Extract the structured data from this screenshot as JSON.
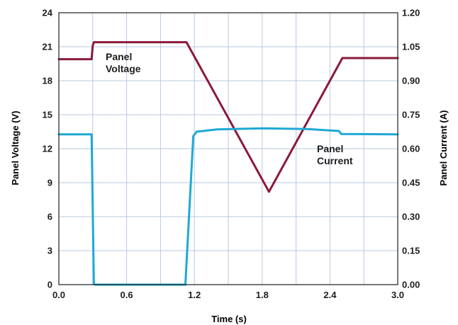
{
  "chart_data": {
    "type": "line",
    "xlabel": "Time (s)",
    "ylabel_left": "Panel Voltage (V)",
    "ylabel_right": "Panel Current (A)",
    "xlim": [
      0.0,
      3.0
    ],
    "ylim_left": [
      0,
      24
    ],
    "ylim_right": [
      0.0,
      1.2
    ],
    "x_ticks": [
      "0.0",
      "0.6",
      "1.2",
      "1.8",
      "2.4",
      "3.0"
    ],
    "y_left_ticks": [
      "0",
      "3",
      "6",
      "9",
      "12",
      "15",
      "18",
      "21",
      "24"
    ],
    "y_right_ticks": [
      "0.00",
      "0.15",
      "0.30",
      "0.45",
      "0.60",
      "0.75",
      "0.90",
      "1.05",
      "1.20"
    ],
    "grid": true,
    "colors": {
      "voltage": "#8b1a3a",
      "current": "#1fa9d4",
      "grid": "#b9c9e2",
      "axis": "#1e1e1e"
    },
    "series": [
      {
        "name": "Panel Voltage",
        "axis": "left",
        "label_lines": [
          "Panel",
          "Voltage"
        ],
        "x": [
          0.0,
          0.29,
          0.3,
          0.31,
          1.13,
          1.86,
          2.51,
          3.0
        ],
        "y": [
          19.9,
          19.9,
          21.1,
          21.4,
          21.4,
          8.2,
          20.0,
          20.0
        ]
      },
      {
        "name": "Panel Current",
        "axis": "right",
        "label_lines": [
          "Panel",
          "Current"
        ],
        "x": [
          0.0,
          0.29,
          0.31,
          0.32,
          1.12,
          1.19,
          1.22,
          1.4,
          1.8,
          2.2,
          2.48,
          2.5,
          3.0
        ],
        "y": [
          0.663,
          0.663,
          0.003,
          0.0,
          0.0,
          0.655,
          0.675,
          0.685,
          0.69,
          0.687,
          0.678,
          0.665,
          0.663
        ]
      }
    ]
  }
}
